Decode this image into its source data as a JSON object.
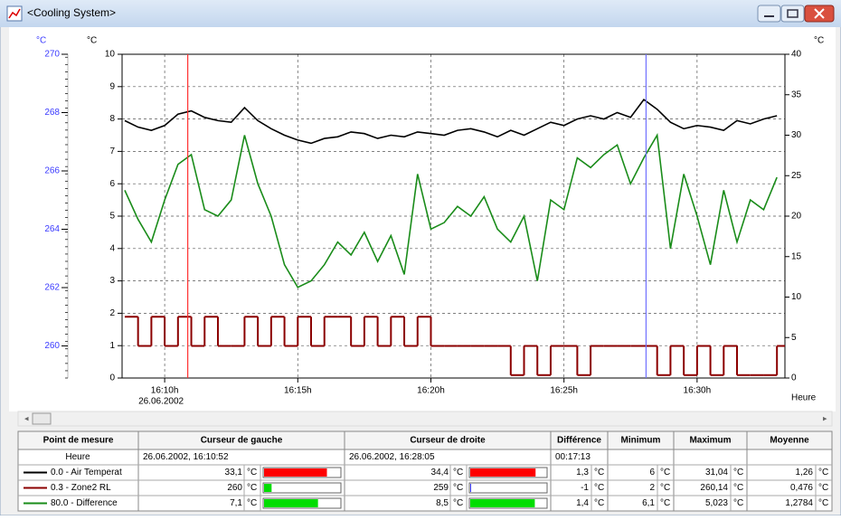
{
  "window": {
    "title": "<Cooling System>"
  },
  "chart_data": {
    "type": "line",
    "x": [
      8.5,
      9.0,
      9.5,
      10.0,
      10.5,
      11.0,
      11.5,
      12.0,
      12.5,
      13.0,
      13.5,
      14.0,
      14.5,
      15.0,
      15.5,
      16.0,
      16.5,
      17.0,
      17.5,
      18.0,
      18.5,
      19.0,
      19.5,
      20.0,
      20.5,
      21.0,
      21.5,
      22.0,
      22.5,
      23.0,
      23.5,
      24.0,
      24.5,
      25.0,
      25.5,
      26.0,
      26.5,
      27.0,
      27.5,
      28.0,
      28.5,
      29.0,
      29.5,
      30.0,
      30.5,
      31.0,
      31.5,
      32.0,
      32.5,
      33.0
    ],
    "xlim": [
      8.4,
      33.3
    ],
    "xticks": [
      {
        "value": 10,
        "label": "16:10h"
      },
      {
        "value": 15,
        "label": "16:15h"
      },
      {
        "value": 20,
        "label": "16:20h"
      },
      {
        "value": 25,
        "label": "16:25h"
      },
      {
        "value": 30,
        "label": "16:30h"
      }
    ],
    "xdate": "26.06.2002",
    "xlabel": "Heure",
    "ylim": [
      0,
      10
    ],
    "yticks": [
      0,
      1,
      2,
      3,
      4,
      5,
      6,
      7,
      8,
      9,
      10
    ],
    "ylabel": "°C",
    "y2lim": [
      0,
      40
    ],
    "y2ticks": [
      0,
      5,
      10,
      15,
      20,
      25,
      30,
      35,
      40
    ],
    "y2label": "°C",
    "y3lim": [
      258.9,
      270
    ],
    "y3ticks": [
      260,
      262,
      264,
      266,
      268,
      270
    ],
    "y3label": "°C",
    "y3color": "#3b3bff",
    "grid": true,
    "series": [
      {
        "name": "0.0 - Air Temperat",
        "color": "#000000",
        "axis": "y2",
        "values": [
          31.8,
          31.0,
          30.6,
          31.2,
          32.6,
          33.0,
          32.2,
          31.8,
          31.6,
          33.4,
          31.8,
          30.8,
          30.0,
          29.4,
          29.0,
          29.6,
          29.8,
          30.4,
          30.2,
          29.6,
          30.0,
          29.8,
          30.4,
          30.2,
          30.0,
          30.6,
          30.8,
          30.4,
          29.8,
          30.6,
          30.0,
          30.8,
          31.6,
          31.2,
          32.0,
          32.4,
          32.0,
          32.8,
          32.2,
          34.4,
          33.2,
          31.6,
          30.8,
          31.2,
          31.0,
          30.6,
          31.8,
          31.4,
          32.0,
          32.4
        ]
      },
      {
        "name": "0.3 - Zone2 RL",
        "color": "#8b0000",
        "axis": "y3",
        "step": true,
        "values": [
          261,
          260,
          261,
          260,
          261,
          260,
          261,
          260,
          260,
          261,
          260,
          261,
          260,
          261,
          260,
          261,
          261,
          260,
          261,
          260,
          261,
          260,
          261,
          260,
          260,
          260,
          260,
          260,
          260,
          259,
          260,
          259,
          260,
          260,
          259,
          260,
          260,
          260,
          260,
          260,
          259,
          260,
          259,
          260,
          259,
          260,
          259,
          259,
          259,
          260
        ]
      },
      {
        "name": "80.0 - Difference",
        "color": "#1a8c1a",
        "axis": "y",
        "values": [
          5.8,
          4.9,
          4.2,
          5.5,
          6.6,
          6.9,
          5.2,
          5.0,
          5.5,
          7.5,
          6.0,
          5.0,
          3.5,
          2.8,
          3.0,
          3.5,
          4.2,
          3.8,
          4.5,
          3.6,
          4.4,
          3.2,
          6.3,
          4.6,
          4.8,
          5.3,
          5.0,
          5.6,
          4.6,
          4.2,
          5.0,
          3.0,
          5.5,
          5.2,
          6.8,
          6.5,
          6.9,
          7.2,
          6.0,
          6.8,
          7.5,
          4.0,
          6.3,
          5.0,
          3.5,
          5.8,
          4.2,
          5.5,
          5.2,
          6.2
        ]
      }
    ],
    "cursors": [
      {
        "x": 10.867,
        "color": "#ff3030"
      },
      {
        "x": 28.083,
        "color": "#7070ff"
      }
    ]
  },
  "table": {
    "headers": [
      "Point de mesure",
      "Curseur de gauche",
      "Curseur de droite",
      "Différence",
      "Minimum",
      "Maximum",
      "Moyenne"
    ],
    "time_row": {
      "left": "26.06.2002, 16:10:52",
      "right": "26.06.2002, 16:28:05",
      "difference": "00:17:13"
    },
    "unit": "°C",
    "rows": [
      {
        "left": {
          "value": 33.1,
          "label": "33,1",
          "color": "#ff0000"
        },
        "right": {
          "value": 34.4,
          "label": "34,4",
          "color": "#ff0000"
        },
        "difference": "1,3",
        "minimum": "6",
        "maximum": "31,04",
        "average": "1,26"
      },
      {
        "left": {
          "value": 260,
          "label": "260",
          "color": "#00dd00"
        },
        "right": {
          "value": 259,
          "label": "259",
          "color": "#0000ff"
        },
        "difference": "-1",
        "minimum": "2",
        "maximum": "260,14",
        "average": "0,476"
      },
      {
        "left": {
          "value": 7.1,
          "label": "7,1",
          "color": "#00dd00"
        },
        "right": {
          "value": 8.5,
          "label": "8,5",
          "color": "#00dd00"
        },
        "difference": "1,4",
        "minimum": "6,1",
        "maximum": "5,023",
        "average": "1,2784"
      }
    ]
  }
}
